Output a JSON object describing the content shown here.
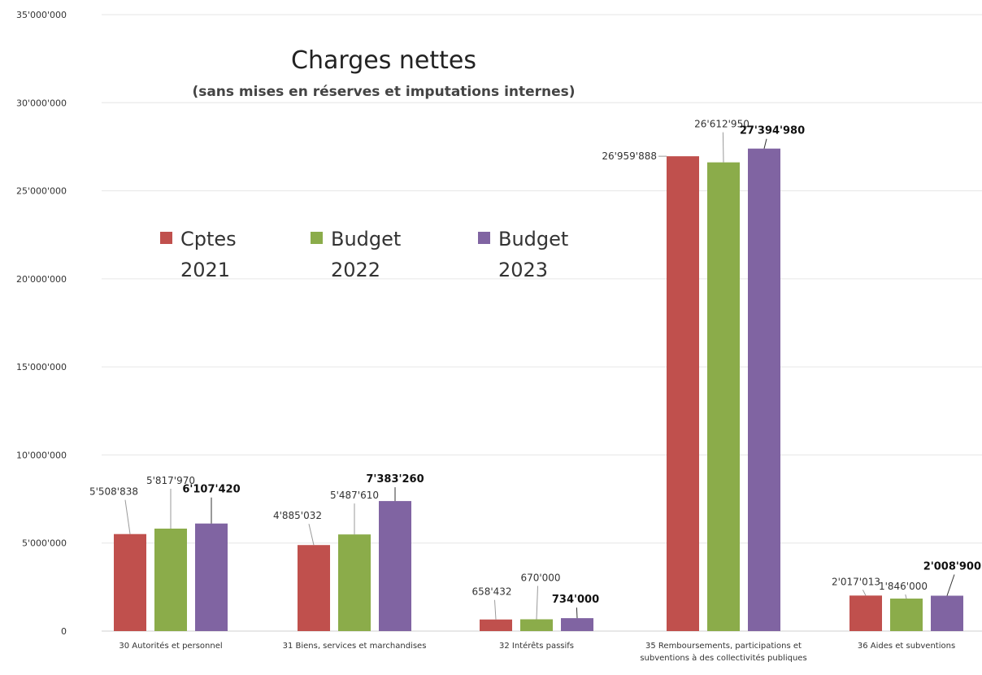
{
  "chart_data": {
    "type": "bar",
    "title": "Charges nettes",
    "subtitle": "(sans mises en réserves et imputations internes)",
    "xlabel": "",
    "ylabel": "",
    "ylim": [
      0,
      35000000
    ],
    "yticks": [
      0,
      5000000,
      10000000,
      15000000,
      20000000,
      25000000,
      30000000,
      35000000
    ],
    "ytick_labels": [
      "0",
      "5'000'000",
      "10'000'000",
      "15'000'000",
      "20'000'000",
      "25'000'000",
      "30'000'000",
      "35'000'000"
    ],
    "grid": true,
    "legend_position": "top-left",
    "categories": [
      [
        "30 Autorités et personnel"
      ],
      [
        "31 Biens, services et marchandises"
      ],
      [
        "32 Intérêts passifs"
      ],
      [
        "35 Remboursements, participations et",
        "subventions à des collectivités publiques"
      ],
      [
        "36 Aides et subventions"
      ]
    ],
    "series": [
      {
        "name": "Cptes 2021",
        "legend_lines": [
          "Cptes",
          "2021"
        ],
        "color": "#c0504d",
        "values": [
          5508838,
          4885032,
          658432,
          26959888,
          2017013
        ],
        "labels": [
          "5'508'838",
          "4'885'032",
          "658'432",
          "26'959'888",
          "2'017'013"
        ],
        "bold": false
      },
      {
        "name": "Budget 2022",
        "legend_lines": [
          "Budget",
          "2022"
        ],
        "color": "#8bac4a",
        "values": [
          5817970,
          5487610,
          670000,
          26612950,
          1846000
        ],
        "labels": [
          "5'817'970",
          "5'487'610",
          "670'000",
          "26'612'950",
          "1'846'000"
        ],
        "bold": false
      },
      {
        "name": "Budget 2023",
        "legend_lines": [
          "Budget",
          "2023"
        ],
        "color": "#8064a2",
        "values": [
          6107420,
          7383260,
          734000,
          27394980,
          2008900
        ],
        "labels": [
          "6'107'420",
          "7'383'260",
          "734'000",
          "27'394'980",
          "2'008'900"
        ],
        "bold": true
      }
    ]
  }
}
